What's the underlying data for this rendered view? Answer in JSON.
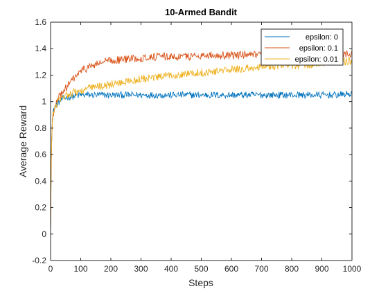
{
  "chart_data": {
    "type": "line",
    "title": "10-Armed Bandit",
    "xlabel": "Steps",
    "ylabel": "Average Reward",
    "xlim": [
      0,
      1000
    ],
    "ylim": [
      -0.2,
      1.6
    ],
    "xticks": [
      0,
      100,
      200,
      300,
      400,
      500,
      600,
      700,
      800,
      900,
      1000
    ],
    "xtick_labels": [
      "0",
      "100",
      "200",
      "300",
      "400",
      "500",
      "600",
      "700",
      "800",
      "900",
      "1000"
    ],
    "yticks": [
      -0.2,
      0,
      0.2,
      0.4,
      0.6,
      0.8,
      1.0,
      1.2,
      1.4,
      1.6
    ],
    "ytick_labels": [
      "-0.2",
      "0",
      "0.2",
      "0.4",
      "0.6",
      "0.8",
      "1",
      "1.2",
      "1.4",
      "1.6"
    ],
    "grid": false,
    "legend_position": "top-right",
    "x": [
      0,
      2,
      5,
      10,
      20,
      30,
      40,
      50,
      75,
      100,
      125,
      150,
      175,
      200,
      250,
      300,
      350,
      400,
      450,
      500,
      550,
      600,
      650,
      700,
      750,
      800,
      850,
      900,
      950,
      1000
    ],
    "series": [
      {
        "name": "epsilon: 0",
        "color": "#0072BD",
        "values": [
          0.0,
          0.55,
          0.85,
          0.93,
          0.98,
          1.0,
          1.02,
          1.03,
          1.04,
          1.05,
          1.05,
          1.05,
          1.05,
          1.05,
          1.05,
          1.05,
          1.05,
          1.05,
          1.05,
          1.05,
          1.05,
          1.05,
          1.05,
          1.05,
          1.05,
          1.05,
          1.05,
          1.05,
          1.05,
          1.06
        ]
      },
      {
        "name": "epsilon: 0.1",
        "color": "#D95319",
        "values": [
          0.0,
          0.5,
          0.82,
          0.92,
          0.99,
          1.04,
          1.08,
          1.1,
          1.17,
          1.23,
          1.26,
          1.28,
          1.3,
          1.31,
          1.32,
          1.33,
          1.34,
          1.34,
          1.34,
          1.35,
          1.35,
          1.35,
          1.35,
          1.35,
          1.36,
          1.36,
          1.36,
          1.36,
          1.36,
          1.36
        ]
      },
      {
        "name": "epsilon: 0.01",
        "color": "#EDB120",
        "values": [
          0.0,
          0.52,
          0.84,
          0.93,
          0.98,
          1.01,
          1.03,
          1.05,
          1.07,
          1.08,
          1.1,
          1.11,
          1.12,
          1.13,
          1.15,
          1.17,
          1.18,
          1.2,
          1.21,
          1.22,
          1.23,
          1.24,
          1.25,
          1.26,
          1.27,
          1.27,
          1.28,
          1.29,
          1.3,
          1.31
        ]
      }
    ]
  }
}
